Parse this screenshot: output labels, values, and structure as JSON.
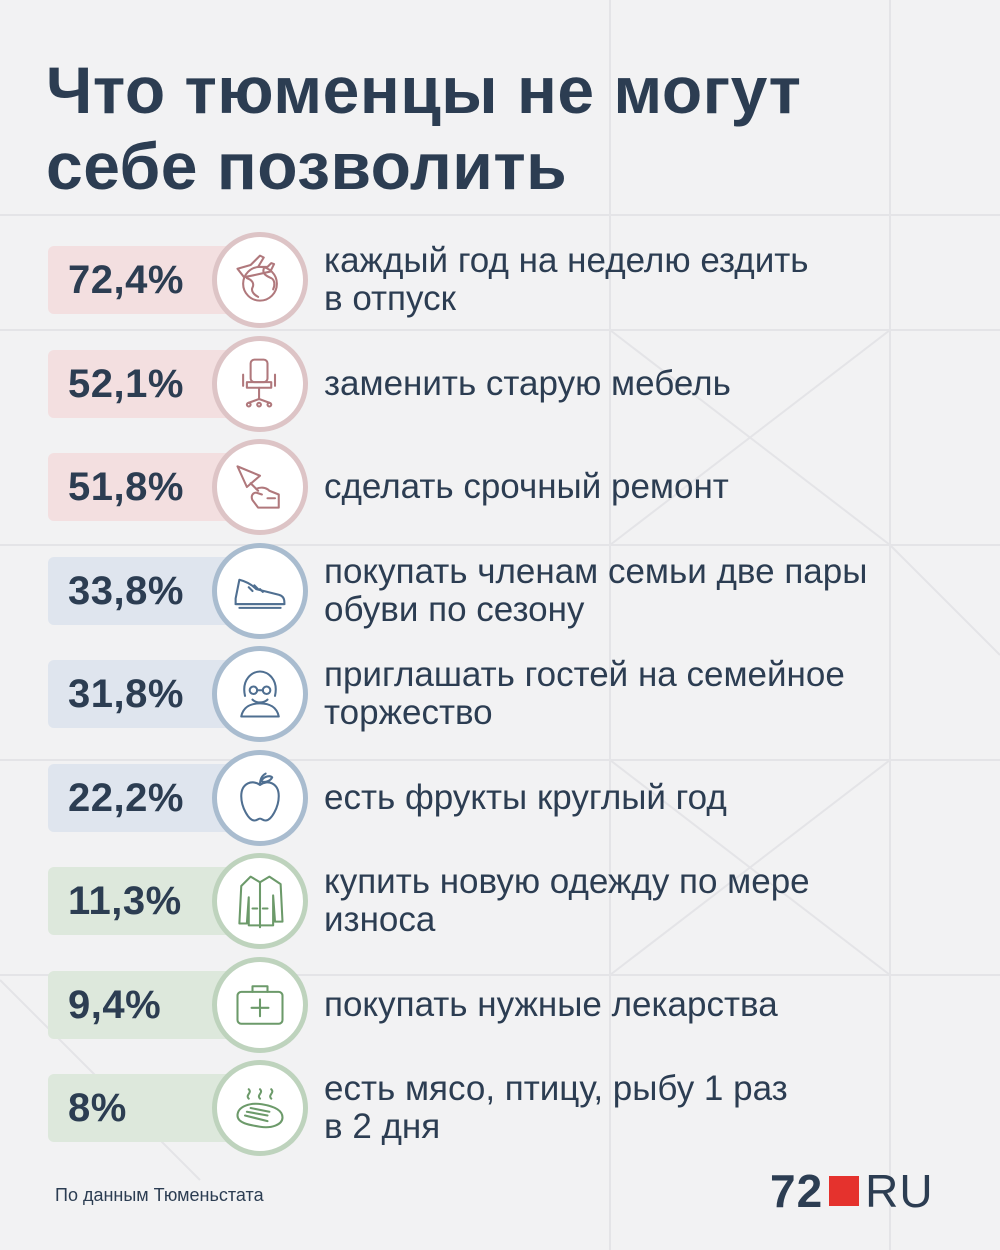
{
  "title_lines": [
    "Что тюменцы не могут",
    "себе позволить"
  ],
  "chart_data": {
    "type": "bar",
    "title": "Что тюменцы не могут себе позволить",
    "categories": [
      "каждый год на неделю ездить в отпуск",
      "заменить старую мебель",
      "сделать срочный ремонт",
      "покупать членам семьи две пары обуви по сезону",
      "приглашать гостей на семейное торжество",
      "есть фрукты круглый год",
      "купить новую одежду по мере износа",
      "покупать нужные лекарства",
      "есть мясо, птицу, рыбу 1 раз в 2 дня"
    ],
    "values": [
      72.4,
      52.1,
      51.8,
      33.8,
      31.8,
      22.2,
      11.3,
      9.4,
      8
    ],
    "unit": "%",
    "colors": {
      "red": "#f3dfe0",
      "blue": "#dfe5ee",
      "green": "#dde8dc"
    }
  },
  "items": [
    {
      "value_label": "72,4%",
      "label_lines": [
        "каждый год на неделю ездить",
        "в отпуск"
      ],
      "icon": "travel-globe-icon",
      "group": "red"
    },
    {
      "value_label": "52,1%",
      "label_lines": [
        "заменить старую мебель"
      ],
      "icon": "office-chair-icon",
      "group": "red"
    },
    {
      "value_label": "51,8%",
      "label_lines": [
        "сделать срочный ремонт"
      ],
      "icon": "trowel-hand-icon",
      "group": "red"
    },
    {
      "value_label": "33,8%",
      "label_lines": [
        "покупать членам семьи две пары",
        "обуви по сезону"
      ],
      "icon": "sneaker-icon",
      "group": "blue"
    },
    {
      "value_label": "31,8%",
      "label_lines": [
        "приглашать гостей на семейное",
        "торжество"
      ],
      "icon": "person-glasses-icon",
      "group": "blue"
    },
    {
      "value_label": "22,2%",
      "label_lines": [
        "есть фрукты круглый год"
      ],
      "icon": "apple-icon",
      "group": "blue"
    },
    {
      "value_label": "11,3%",
      "label_lines": [
        "купить новую одежду по мере",
        "износа"
      ],
      "icon": "jacket-icon",
      "group": "green"
    },
    {
      "value_label": "9,4%",
      "label_lines": [
        "покупать нужные лекарства"
      ],
      "icon": "first-aid-kit-icon",
      "group": "green"
    },
    {
      "value_label": "8%",
      "label_lines": [
        "есть мясо, птицу, рыбу 1 раз",
        "в 2 дня"
      ],
      "icon": "steak-icon",
      "group": "green"
    }
  ],
  "footer": {
    "source": "По данным Тюменьстата"
  },
  "logo": {
    "number": "72",
    "suffix": "RU"
  }
}
